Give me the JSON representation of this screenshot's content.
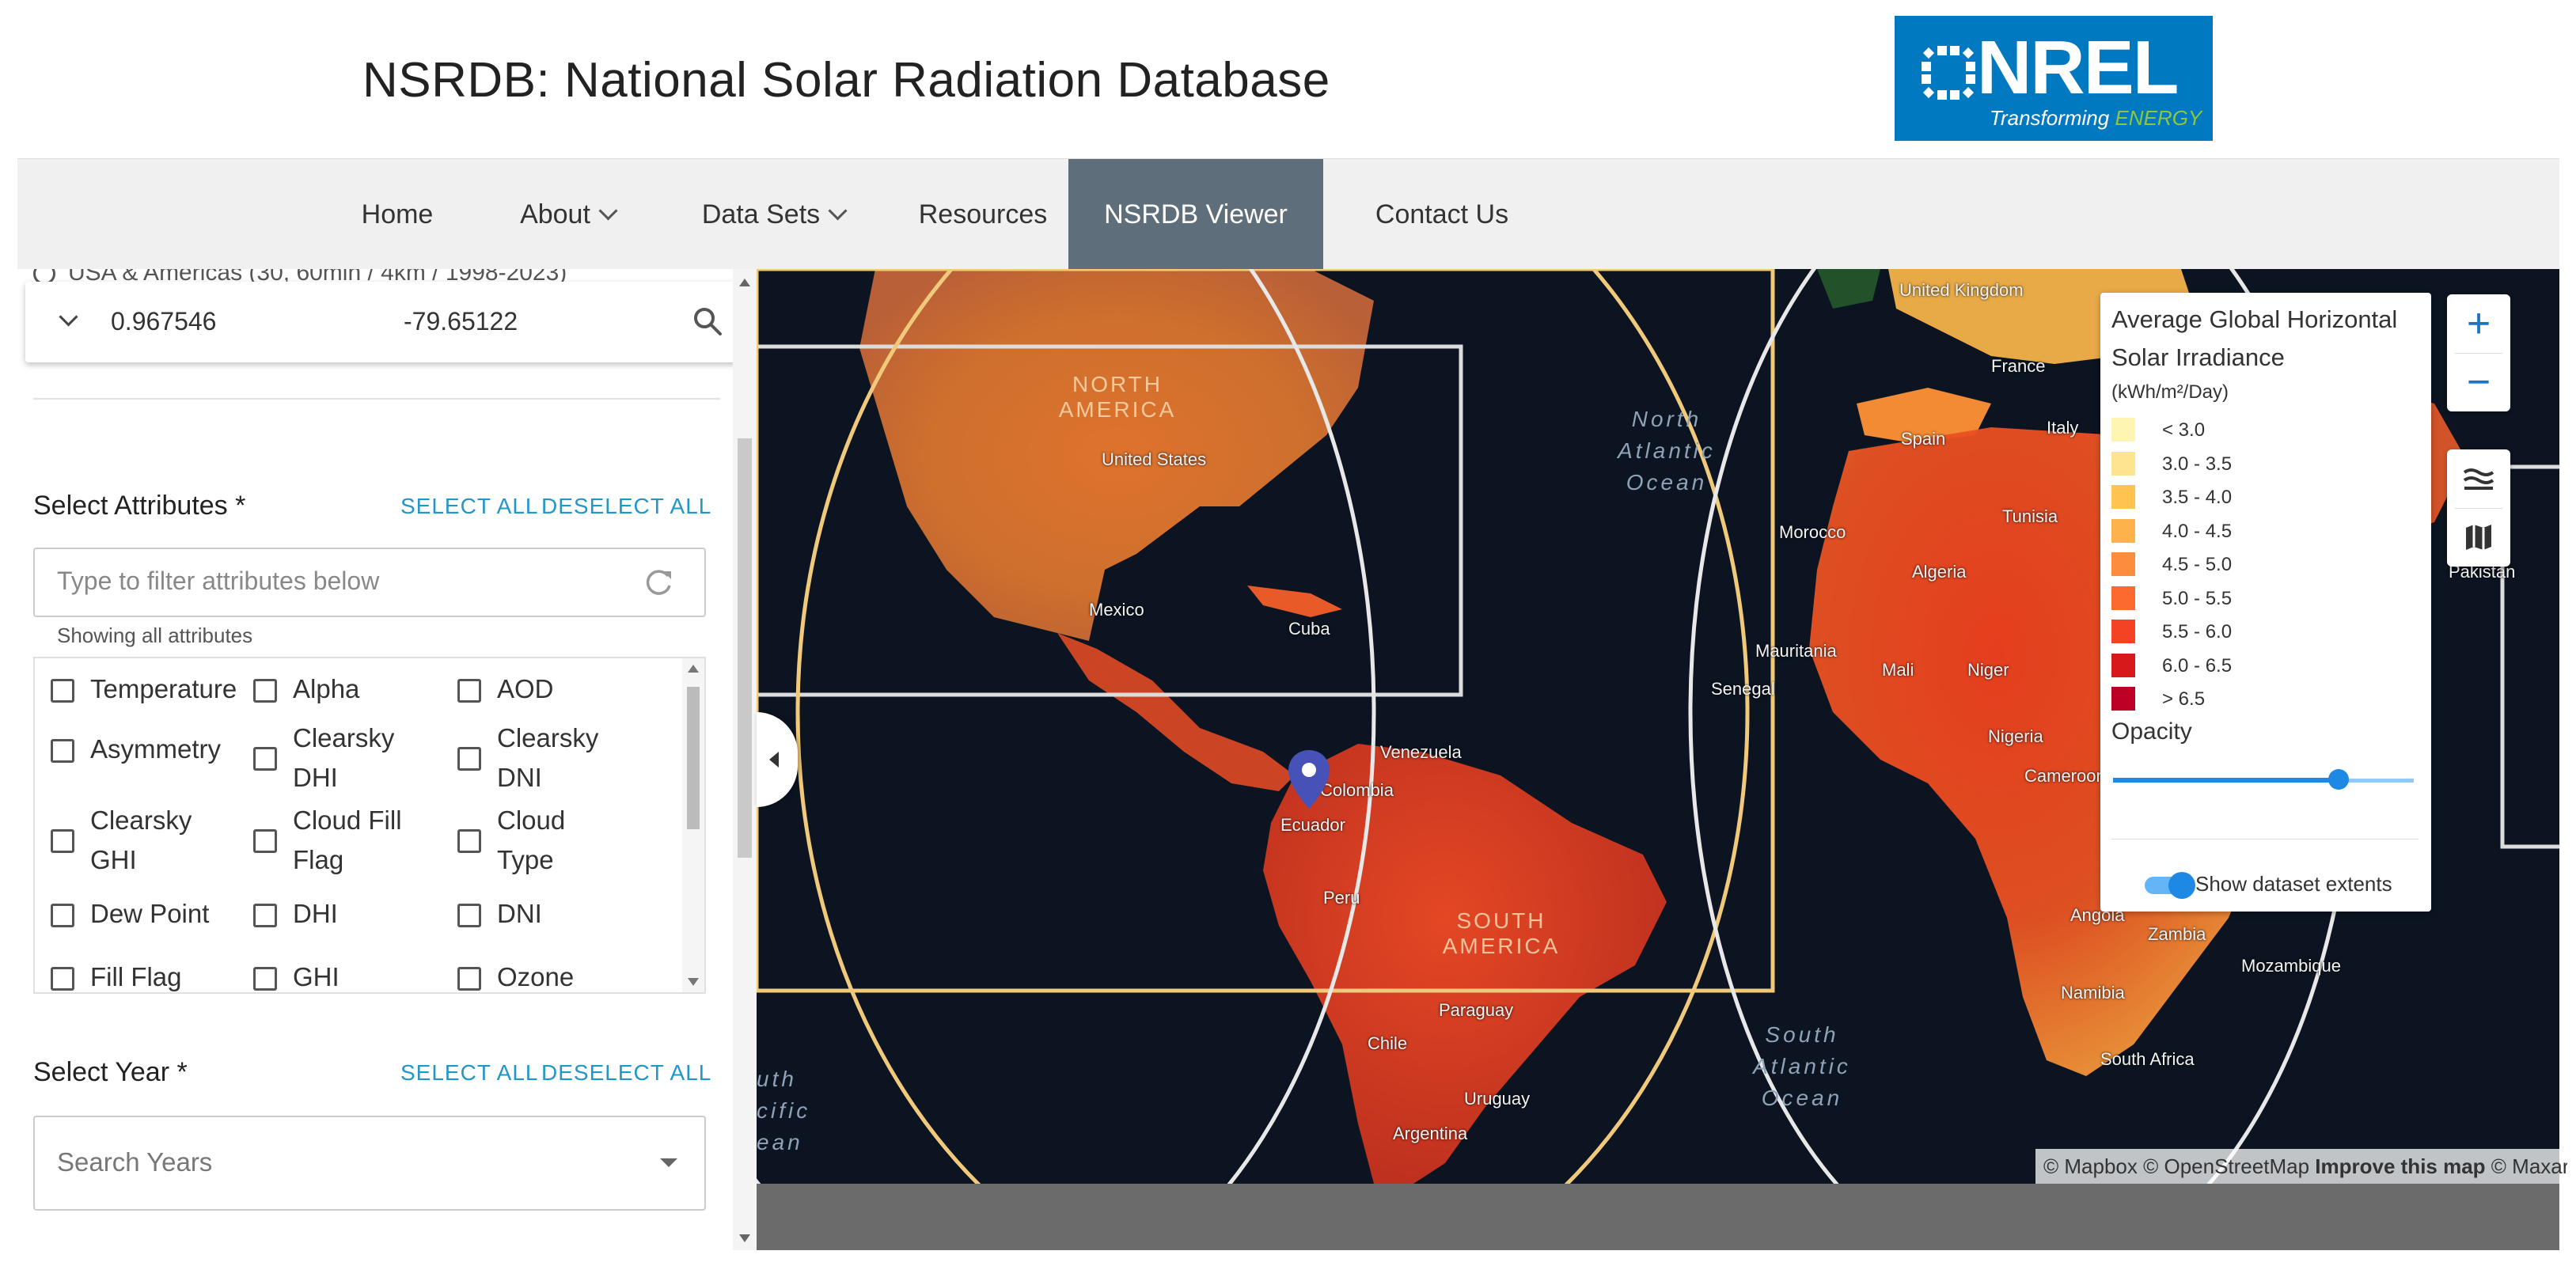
{
  "header": {
    "title": "NSRDB: National Solar Radiation Database",
    "logo_text": "NREL",
    "logo_tagline_1": "Transforming",
    "logo_tagline_2": "ENERGY"
  },
  "nav": {
    "items": [
      {
        "label": "Home"
      },
      {
        "label": "About"
      },
      {
        "label": "Data Sets"
      },
      {
        "label": "Resources"
      },
      {
        "label": "NSRDB Viewer"
      },
      {
        "label": "Contact Us"
      }
    ]
  },
  "sidebar": {
    "dataset_hint": "USA & Americas (30, 60min / 4km / 1998-2023)",
    "latitude": "0.967546",
    "longitude": "-79.65122",
    "attributes_title": "Select Attributes *",
    "select_all": "SELECT ALL",
    "deselect_all": "DESELECT ALL",
    "filter_placeholder": "Type to filter attributes below",
    "showing_text": "Showing all attributes",
    "attributes": [
      [
        "Temperature",
        "Alpha",
        "AOD"
      ],
      [
        "Asymmetry",
        "Clearsky DHI",
        "Clearsky DNI"
      ],
      [
        "Clearsky GHI",
        "Cloud Fill Flag",
        "Cloud Type"
      ],
      [
        "Dew Point",
        "DHI",
        "DNI"
      ],
      [
        "Fill Flag",
        "GHI",
        "Ozone"
      ]
    ],
    "year_title": "Select Year *",
    "year_placeholder": "Search Years"
  },
  "map": {
    "labels": {
      "united_kingdom": "United Kingdom",
      "france": "France",
      "spain": "Spain",
      "italy": "Italy",
      "morocco": "Morocco",
      "tunisia": "Tunisia",
      "algeria": "Algeria",
      "mauritania": "Mauritania",
      "mali": "Mali",
      "niger": "Niger",
      "senegal": "Senegal",
      "nigeria": "Nigeria",
      "cameroon": "Cameroon",
      "angola": "Angola",
      "zambia": "Zambia",
      "mozambique": "Mozambique",
      "namibia": "Namibia",
      "south_africa": "South Africa",
      "united_states": "United States",
      "mexico": "Mexico",
      "cuba": "Cuba",
      "venezuela": "Venezuela",
      "colombia": "Colombia",
      "ecuador": "Ecuador",
      "peru": "Peru",
      "paraguay": "Paraguay",
      "chile": "Chile",
      "uruguay": "Uruguay",
      "argentina": "Argentina",
      "pakistan": "Pakistan",
      "north_america": "NORTH AMERICA",
      "south_america": "SOUTH AMERICA",
      "north_atlantic": "North Atlantic Ocean",
      "south_atlantic": "South Atlantic Ocean",
      "south_pacific": "uth cific ean"
    },
    "attribution_1": "© Mapbox © OpenStreetMap",
    "attribution_2": "Improve this map",
    "attribution_3": "© Maxar"
  },
  "legend": {
    "title": "Average Global Horizontal Solar Irradiance",
    "unit": "(kWh/m²/Day)",
    "items": [
      {
        "label": "< 3.0",
        "color": "#fff5b3"
      },
      {
        "label": "3.0 - 3.5",
        "color": "#fee391"
      },
      {
        "label": "3.5 - 4.0",
        "color": "#fec44f"
      },
      {
        "label": "4.0 - 4.5",
        "color": "#feb24c"
      },
      {
        "label": "4.5 - 5.0",
        "color": "#fd8d3c"
      },
      {
        "label": "5.0 - 5.5",
        "color": "#fc6a2f"
      },
      {
        "label": "5.5 - 6.0",
        "color": "#f44225"
      },
      {
        "label": "6.0 - 6.5",
        "color": "#d7191c"
      },
      {
        "label": "> 6.5",
        "color": "#bd0026"
      }
    ],
    "opacity_label": "Opacity",
    "opacity_value": 0.75,
    "toggle_label": "Show dataset extents"
  },
  "controls": {
    "zoom_in": "+",
    "zoom_out": "−"
  },
  "icons": [
    "search-icon",
    "refresh-icon",
    "chevron-down-icon",
    "map-marker-icon",
    "layers-icon",
    "map-icon"
  ]
}
